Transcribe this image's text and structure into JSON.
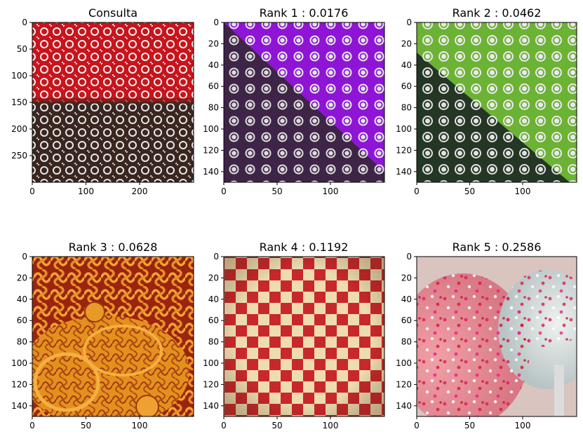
{
  "panels": [
    {
      "title": "Consulta",
      "xticks": [
        "0",
        "100",
        "200"
      ],
      "yticks": [
        "0",
        "50",
        "100",
        "150",
        "200",
        "250"
      ]
    },
    {
      "title": "Rank 1 : 0.0176",
      "xticks": [
        "0",
        "50",
        "100"
      ],
      "yticks": [
        "0",
        "20",
        "40",
        "60",
        "80",
        "100",
        "120",
        "140"
      ]
    },
    {
      "title": "Rank 2 : 0.0462",
      "xticks": [
        "0",
        "50",
        "100"
      ],
      "yticks": [
        "0",
        "20",
        "40",
        "60",
        "80",
        "100",
        "120",
        "140"
      ]
    },
    {
      "title": "Rank 3 : 0.0628",
      "xticks": [
        "0",
        "50",
        "100"
      ],
      "yticks": [
        "0",
        "20",
        "40",
        "60",
        "80",
        "100",
        "120",
        "140"
      ]
    },
    {
      "title": "Rank 4 : 0.1192",
      "xticks": [
        "0",
        "50",
        "100"
      ],
      "yticks": [
        "0",
        "20",
        "40",
        "60",
        "80",
        "100",
        "120",
        "140"
      ]
    },
    {
      "title": "Rank 5 : 0.2586",
      "xticks": [
        "0",
        "50",
        "100"
      ],
      "yticks": [
        "0",
        "20",
        "40",
        "60",
        "80",
        "100",
        "120",
        "140"
      ]
    }
  ],
  "colors": {
    "red_fabric": "#c8141c",
    "brown_fabric": "#3a2620",
    "purple_fabric": "#8e14d6",
    "dark_purple_fabric": "#3e2446",
    "green_fabric": "#6cb234",
    "dark_green_fabric": "#243624",
    "celtic_orange": "#e08a1e",
    "celtic_red": "#9a2410",
    "checker_red": "#c8282c",
    "checker_cream": "#eedcb0",
    "candy_pink": "#e88a96",
    "candy_white": "#e6eaea"
  }
}
